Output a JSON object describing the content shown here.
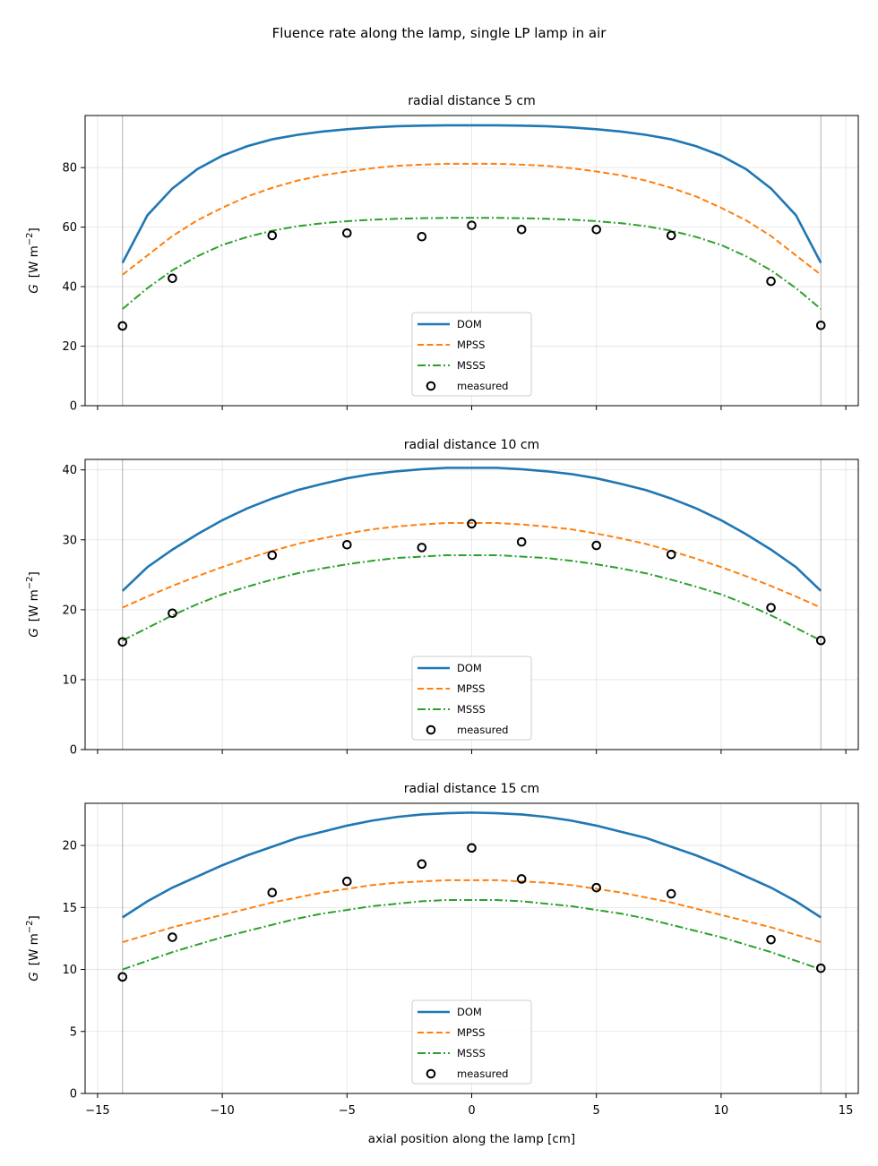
{
  "suptitle": "Fluence rate along the lamp, single LP lamp in air",
  "chart_data": [
    {
      "type": "line",
      "title": "radial distance 5 cm",
      "ylabel": "G [W m⁻²]",
      "xlabel": "",
      "xlim": [
        -15.5,
        15.5
      ],
      "ylim": [
        0,
        97.5
      ],
      "xticks": [
        -15,
        -10,
        -5,
        0,
        5,
        10,
        15
      ],
      "yticks": [
        0,
        20,
        40,
        60,
        80
      ],
      "show_xticklabels": false,
      "grid": true,
      "legend": "lower-center",
      "lamp_end_markers": [
        -14,
        14
      ],
      "series": [
        {
          "name": "DOM",
          "color": "#1f77b4",
          "style": "solid",
          "x": [
            -14,
            -13,
            -12,
            -11,
            -10,
            -9,
            -8,
            -7,
            -6,
            -5,
            -4,
            -3,
            -2,
            -1,
            0,
            1,
            2,
            3,
            4,
            5,
            6,
            7,
            8,
            9,
            10,
            11,
            12,
            13,
            14
          ],
          "y": [
            48,
            64,
            73,
            79.5,
            84,
            87.2,
            89.5,
            91,
            92.1,
            92.9,
            93.5,
            93.9,
            94.1,
            94.2,
            94.2,
            94.2,
            94.1,
            93.9,
            93.5,
            92.9,
            92.1,
            91,
            89.5,
            87.2,
            84,
            79.5,
            73,
            64,
            48
          ]
        },
        {
          "name": "MPSS",
          "color": "#ff7f0e",
          "style": "dashed",
          "x": [
            -14,
            -13,
            -12,
            -11,
            -10,
            -9,
            -8,
            -7,
            -6,
            -5,
            -4,
            -3,
            -2,
            -1,
            0,
            1,
            2,
            3,
            4,
            5,
            6,
            7,
            8,
            9,
            10,
            11,
            12,
            13,
            14
          ],
          "y": [
            44,
            50.5,
            57,
            62.3,
            66.5,
            70.3,
            73.2,
            75.6,
            77.4,
            78.7,
            79.8,
            80.6,
            81,
            81.3,
            81.3,
            81.3,
            81,
            80.6,
            79.8,
            78.7,
            77.4,
            75.6,
            73.2,
            70.3,
            66.5,
            62.3,
            57,
            50.5,
            44
          ]
        },
        {
          "name": "MSSS",
          "color": "#2ca02c",
          "style": "dashdot",
          "x": [
            -14,
            -13,
            -12,
            -11,
            -10,
            -9,
            -8,
            -7,
            -6,
            -5,
            -4,
            -3,
            -2,
            -1,
            0,
            1,
            2,
            3,
            4,
            5,
            6,
            7,
            8,
            9,
            10,
            11,
            12,
            13,
            14
          ],
          "y": [
            32.5,
            39.5,
            45.5,
            50.2,
            54,
            56.7,
            58.8,
            60.3,
            61.3,
            62,
            62.5,
            62.8,
            63,
            63.1,
            63.1,
            63.1,
            63,
            62.8,
            62.5,
            62,
            61.3,
            60.3,
            58.8,
            56.7,
            54,
            50.2,
            45.5,
            39.5,
            32.5
          ]
        },
        {
          "name": "measured",
          "color": "#000000",
          "style": "markers",
          "x": [
            -14,
            -12,
            -8,
            -5,
            -2,
            0,
            2,
            5,
            8,
            12,
            14
          ],
          "y": [
            26.8,
            42.8,
            57.2,
            58,
            56.8,
            60.6,
            59.2,
            59.2,
            57.2,
            41.8,
            27
          ]
        }
      ]
    },
    {
      "type": "line",
      "title": "radial distance 10 cm",
      "ylabel": "G [W m⁻²]",
      "xlabel": "",
      "xlim": [
        -15.5,
        15.5
      ],
      "ylim": [
        0,
        41.5
      ],
      "xticks": [
        -15,
        -10,
        -5,
        0,
        5,
        10,
        15
      ],
      "yticks": [
        0,
        10,
        20,
        30,
        40
      ],
      "show_xticklabels": false,
      "grid": true,
      "legend": "lower-center",
      "lamp_end_markers": [
        -14,
        14
      ],
      "series": [
        {
          "name": "DOM",
          "color": "#1f77b4",
          "style": "solid",
          "x": [
            -14,
            -13,
            -12,
            -11,
            -10,
            -9,
            -8,
            -7,
            -6,
            -5,
            -4,
            -3,
            -2,
            -1,
            0,
            1,
            2,
            3,
            4,
            5,
            6,
            7,
            8,
            9,
            10,
            11,
            12,
            13,
            14
          ],
          "y": [
            22.7,
            26.1,
            28.6,
            30.8,
            32.8,
            34.5,
            35.9,
            37.1,
            38,
            38.8,
            39.4,
            39.8,
            40.1,
            40.3,
            40.3,
            40.3,
            40.1,
            39.8,
            39.4,
            38.8,
            38,
            37.1,
            35.9,
            34.5,
            32.8,
            30.8,
            28.6,
            26.1,
            22.7
          ]
        },
        {
          "name": "MPSS",
          "color": "#ff7f0e",
          "style": "dashed",
          "x": [
            -14,
            -13,
            -12,
            -11,
            -10,
            -9,
            -8,
            -7,
            -6,
            -5,
            -4,
            -3,
            -2,
            -1,
            0,
            1,
            2,
            3,
            4,
            5,
            6,
            7,
            8,
            9,
            10,
            11,
            12,
            13,
            14
          ],
          "y": [
            20.3,
            21.9,
            23.4,
            24.8,
            26.1,
            27.3,
            28.4,
            29.4,
            30.2,
            30.9,
            31.5,
            31.9,
            32.2,
            32.4,
            32.4,
            32.4,
            32.2,
            31.9,
            31.5,
            30.9,
            30.2,
            29.4,
            28.4,
            27.3,
            26.1,
            24.8,
            23.4,
            21.9,
            20.3
          ]
        },
        {
          "name": "MSSS",
          "color": "#2ca02c",
          "style": "dashdot",
          "x": [
            -14,
            -13,
            -12,
            -11,
            -10,
            -9,
            -8,
            -7,
            -6,
            -5,
            -4,
            -3,
            -2,
            -1,
            0,
            1,
            2,
            3,
            4,
            5,
            6,
            7,
            8,
            9,
            10,
            11,
            12,
            13,
            14
          ],
          "y": [
            15.6,
            17.4,
            19.2,
            20.8,
            22.2,
            23.3,
            24.3,
            25.2,
            25.9,
            26.5,
            27,
            27.4,
            27.6,
            27.8,
            27.8,
            27.8,
            27.6,
            27.4,
            27,
            26.5,
            25.9,
            25.2,
            24.3,
            23.3,
            22.2,
            20.8,
            19.2,
            17.4,
            15.6
          ]
        },
        {
          "name": "measured",
          "color": "#000000",
          "style": "markers",
          "x": [
            -14,
            -12,
            -8,
            -5,
            -2,
            0,
            2,
            5,
            8,
            12,
            14
          ],
          "y": [
            15.4,
            19.5,
            27.8,
            29.3,
            28.9,
            32.3,
            29.7,
            29.2,
            27.9,
            20.3,
            15.6
          ]
        }
      ]
    },
    {
      "type": "line",
      "title": "radial distance 15 cm",
      "ylabel": "G [W m⁻²]",
      "xlabel": "axial position along the lamp [cm]",
      "xlim": [
        -15.5,
        15.5
      ],
      "ylim": [
        0,
        23.4
      ],
      "xticks": [
        -15,
        -10,
        -5,
        0,
        5,
        10,
        15
      ],
      "yticks": [
        0,
        5,
        10,
        15,
        20
      ],
      "show_xticklabels": true,
      "grid": true,
      "legend": "lower-center",
      "lamp_end_markers": [
        -14,
        14
      ],
      "series": [
        {
          "name": "DOM",
          "color": "#1f77b4",
          "style": "solid",
          "x": [
            -14,
            -13,
            -12,
            -11,
            -10,
            -9,
            -8,
            -7,
            -6,
            -5,
            -4,
            -3,
            -2,
            -1,
            0,
            1,
            2,
            3,
            4,
            5,
            6,
            7,
            8,
            9,
            10,
            11,
            12,
            13,
            14
          ],
          "y": [
            14.2,
            15.5,
            16.6,
            17.5,
            18.4,
            19.2,
            19.9,
            20.6,
            21.1,
            21.6,
            22,
            22.3,
            22.5,
            22.6,
            22.65,
            22.6,
            22.5,
            22.3,
            22,
            21.6,
            21.1,
            20.6,
            19.9,
            19.2,
            18.4,
            17.5,
            16.6,
            15.5,
            14.2
          ]
        },
        {
          "name": "MPSS",
          "color": "#ff7f0e",
          "style": "dashed",
          "x": [
            -14,
            -13,
            -12,
            -11,
            -10,
            -9,
            -8,
            -7,
            -6,
            -5,
            -4,
            -3,
            -2,
            -1,
            0,
            1,
            2,
            3,
            4,
            5,
            6,
            7,
            8,
            9,
            10,
            11,
            12,
            13,
            14
          ],
          "y": [
            12.2,
            12.8,
            13.4,
            13.9,
            14.4,
            14.9,
            15.4,
            15.8,
            16.2,
            16.5,
            16.8,
            17,
            17.1,
            17.2,
            17.2,
            17.2,
            17.1,
            17,
            16.8,
            16.5,
            16.2,
            15.8,
            15.4,
            14.9,
            14.4,
            13.9,
            13.4,
            12.8,
            12.2
          ]
        },
        {
          "name": "MSSS",
          "color": "#2ca02c",
          "style": "dashdot",
          "x": [
            -14,
            -13,
            -12,
            -11,
            -10,
            -9,
            -8,
            -7,
            -6,
            -5,
            -4,
            -3,
            -2,
            -1,
            0,
            1,
            2,
            3,
            4,
            5,
            6,
            7,
            8,
            9,
            10,
            11,
            12,
            13,
            14
          ],
          "y": [
            10,
            10.7,
            11.4,
            12,
            12.6,
            13.1,
            13.6,
            14.1,
            14.5,
            14.8,
            15.1,
            15.3,
            15.5,
            15.6,
            15.6,
            15.6,
            15.5,
            15.3,
            15.1,
            14.8,
            14.5,
            14.1,
            13.6,
            13.1,
            12.6,
            12,
            11.4,
            10.7,
            10
          ]
        },
        {
          "name": "measured",
          "color": "#000000",
          "style": "markers",
          "x": [
            -14,
            -12,
            -8,
            -5,
            -2,
            0,
            2,
            5,
            8,
            12,
            14
          ],
          "y": [
            9.4,
            12.6,
            16.2,
            17.1,
            18.5,
            19.8,
            17.3,
            16.6,
            16.1,
            12.4,
            10.1
          ]
        }
      ]
    }
  ]
}
